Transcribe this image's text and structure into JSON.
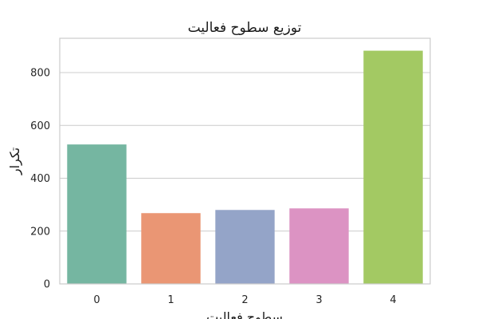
{
  "chart_data": {
    "type": "bar",
    "title": "توزیع سطوح فعالیت",
    "xlabel": "سطوح فعالیت",
    "ylabel": "تکرار",
    "categories": [
      "0",
      "1",
      "2",
      "3",
      "4"
    ],
    "values": [
      528,
      268,
      280,
      286,
      883
    ],
    "colors": [
      "#75b6a1",
      "#ea9674",
      "#94a4c8",
      "#dc93c3",
      "#a3c963"
    ],
    "ylim": [
      0,
      930
    ],
    "yticks": [
      0,
      200,
      400,
      600,
      800
    ],
    "grid": "horizontal",
    "legend": "none"
  }
}
